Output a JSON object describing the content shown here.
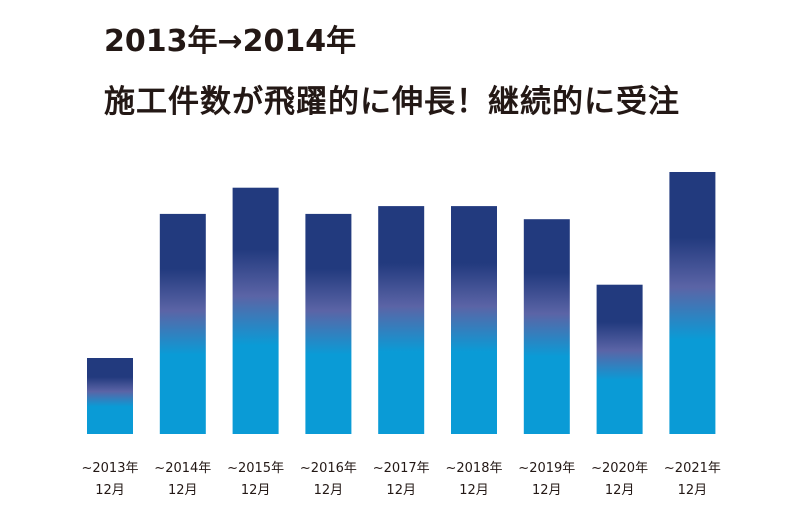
{
  "header": {
    "title_line1": "2013年→2014年",
    "title_line2": "施工件数が飛躍的に伸長！継続的に受注"
  },
  "colors": {
    "bar_top": "#223a7e",
    "bar_mid": "#5b64a6",
    "bar_bottom": "#0a9bd6",
    "text": "#231815"
  },
  "chart_data": {
    "type": "bar",
    "categories": [
      [
        "~2013年",
        "12月"
      ],
      [
        "~2014年",
        "12月"
      ],
      [
        "~2015年",
        "12月"
      ],
      [
        "~2016年",
        "12月"
      ],
      [
        "~2017年",
        "12月"
      ],
      [
        "~2018年",
        "12月"
      ],
      [
        "~2019年",
        "12月"
      ],
      [
        "~2020年",
        "12月"
      ],
      [
        "~2021年",
        "12月"
      ]
    ],
    "values": [
      29,
      84,
      94,
      84,
      87,
      87,
      82,
      57,
      100
    ],
    "value_scale": "relative (no y-axis printed)",
    "ylim": [
      0,
      100
    ],
    "title": "",
    "xlabel": "",
    "ylabel": "",
    "grid": false,
    "legend": "none"
  }
}
